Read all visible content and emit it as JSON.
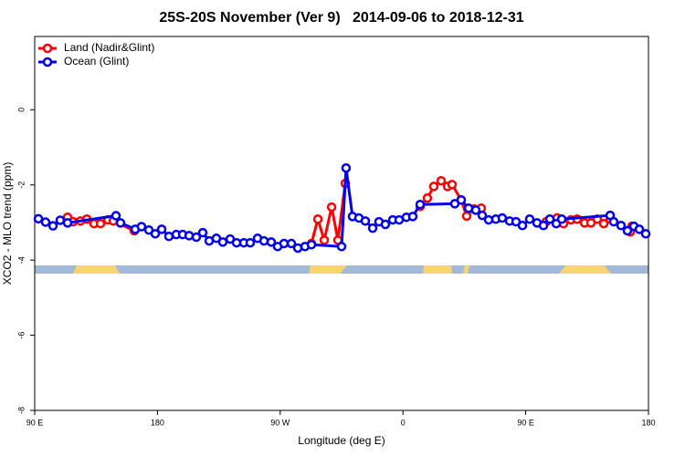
{
  "chart_data": {
    "type": "line",
    "title": "25S-20S November (Ver 9)   2014-09-06 to 2018-12-31",
    "xlabel": "Longitude (deg E)",
    "ylabel": "XCO2 - MLO trend (ppm)",
    "xlim": [
      90,
      540
    ],
    "ylim": [
      -8,
      1.95
    ],
    "xticks": [
      {
        "value": 90,
        "label": "90 E"
      },
      180,
      {
        "value": 270,
        "label": "90 W"
      },
      {
        "value": 360,
        "label": "0"
      },
      {
        "value": 450,
        "label": "90 E"
      },
      {
        "value": 540,
        "label": "180"
      }
    ],
    "yticks": [
      -8,
      -6,
      -4,
      -2,
      0
    ],
    "legend": "topleft",
    "series": [
      {
        "name": "Land (Nadir&Glint)",
        "color": "#ff0000",
        "x": [
          114.1,
          118.1,
          123.5,
          128.2,
          133.5,
          138.2,
          143.6,
          147.6,
          163.0,
          null,
          292.9,
          297.6,
          302.3,
          307.7,
          312.3,
          317.7,
          null,
          372.6,
          377.9,
          382.6,
          388.0,
          392.7,
          396.0,
          402.7,
          406.7,
          412.1,
          417.4,
          null,
          465.0,
          473.0,
          477.7,
          483.1,
          487.7,
          493.1,
          497.8,
          502.5,
          507.2,
          511.9,
          526.6,
          527.9
        ],
        "values": [
          -2.86,
          -2.98,
          -2.96,
          -2.91,
          -3.03,
          -3.03,
          -2.93,
          -2.96,
          -3.22,
          null,
          -3.56,
          -2.91,
          -3.47,
          -2.59,
          -3.47,
          -1.96,
          null,
          -2.57,
          -2.35,
          -2.04,
          -1.89,
          -2.04,
          -1.99,
          -2.4,
          -2.83,
          -2.64,
          -2.62,
          null,
          -2.98,
          -2.88,
          -3.03,
          -2.93,
          -2.91,
          -3.01,
          -3.01,
          -2.91,
          -3.03,
          -2.91,
          -3.25,
          -3.1
        ]
      },
      {
        "name": "Ocean (Glint)",
        "color": "#0000ee",
        "x": [
          92.7,
          98.0,
          103.4,
          108.7,
          114.1,
          149.6,
          152.9,
          163.7,
          168.3,
          173.7,
          178.4,
          183.1,
          188.4,
          193.8,
          198.5,
          203.2,
          208.5,
          213.2,
          217.9,
          223.2,
          227.9,
          233.3,
          238.0,
          243.3,
          248.0,
          253.4,
          258.1,
          263.4,
          268.1,
          272.8,
          278.2,
          282.9,
          288.2,
          292.9,
          315.0,
          318.3,
          323.0,
          327.7,
          332.4,
          337.8,
          342.4,
          347.1,
          352.5,
          357.2,
          362.5,
          367.2,
          372.6,
          398.0,
          402.7,
          408.1,
          413.4,
          418.1,
          422.8,
          428.1,
          432.8,
          438.2,
          442.9,
          447.6,
          452.9,
          458.3,
          463.0,
          467.7,
          472.4,
          476.4,
          511.9,
          514.5,
          519.9,
          524.6,
          529.3,
          533.3,
          538.0
        ],
        "values": [
          -2.9,
          -2.99,
          -3.09,
          -2.94,
          -3.01,
          -2.82,
          -3.01,
          -3.18,
          -3.11,
          -3.2,
          -3.3,
          -3.18,
          -3.37,
          -3.32,
          -3.32,
          -3.35,
          -3.39,
          -3.27,
          -3.49,
          -3.42,
          -3.52,
          -3.44,
          -3.54,
          -3.54,
          -3.54,
          -3.42,
          -3.49,
          -3.52,
          -3.64,
          -3.56,
          -3.56,
          -3.68,
          -3.64,
          -3.59,
          -3.64,
          -1.55,
          -2.84,
          -2.88,
          -2.96,
          -3.15,
          -2.98,
          -3.05,
          -2.93,
          -2.93,
          -2.86,
          -2.84,
          -2.52,
          -2.5,
          -2.4,
          -2.62,
          -2.67,
          -2.81,
          -2.93,
          -2.91,
          -2.88,
          -2.96,
          -2.98,
          -3.08,
          -2.91,
          -3.01,
          -3.08,
          -2.91,
          -3.03,
          -2.91,
          -2.81,
          -2.98,
          -3.08,
          -3.22,
          -3.1,
          -3.18,
          -3.3
        ]
      }
    ]
  }
}
